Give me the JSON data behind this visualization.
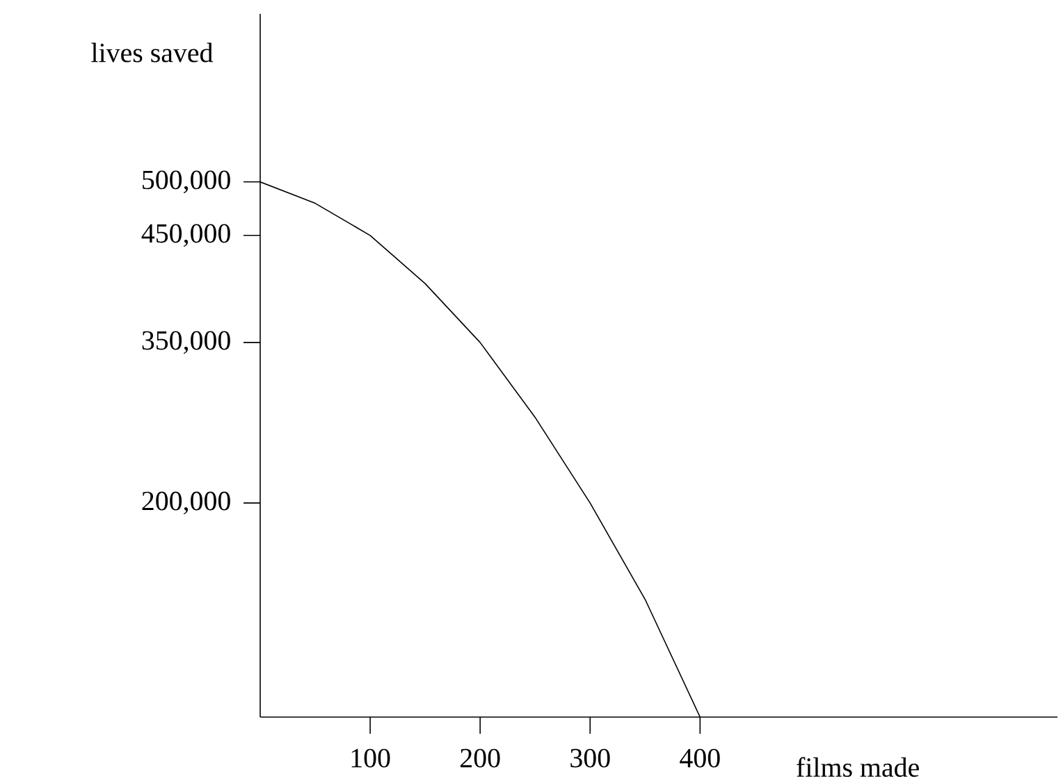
{
  "chart_data": {
    "type": "line",
    "xlabel": "films made",
    "ylabel": "lives saved",
    "x": [
      0,
      50,
      100,
      150,
      200,
      250,
      300,
      350,
      400
    ],
    "values": [
      500000,
      480000,
      450000,
      405000,
      350000,
      280000,
      200000,
      110000,
      0
    ],
    "color": "#000000",
    "xlim": [
      0,
      725
    ],
    "ylim": [
      0,
      657000
    ],
    "xticks": [
      100,
      200,
      300,
      400
    ],
    "yticks": [
      {
        "value": 200000,
        "label": "200,000"
      },
      {
        "value": 350000,
        "label": "350,000"
      },
      {
        "value": 450000,
        "label": "450,000"
      },
      {
        "value": 500000,
        "label": "500,000"
      }
    ],
    "grid": false,
    "marker": "none",
    "line_style": "solid"
  }
}
